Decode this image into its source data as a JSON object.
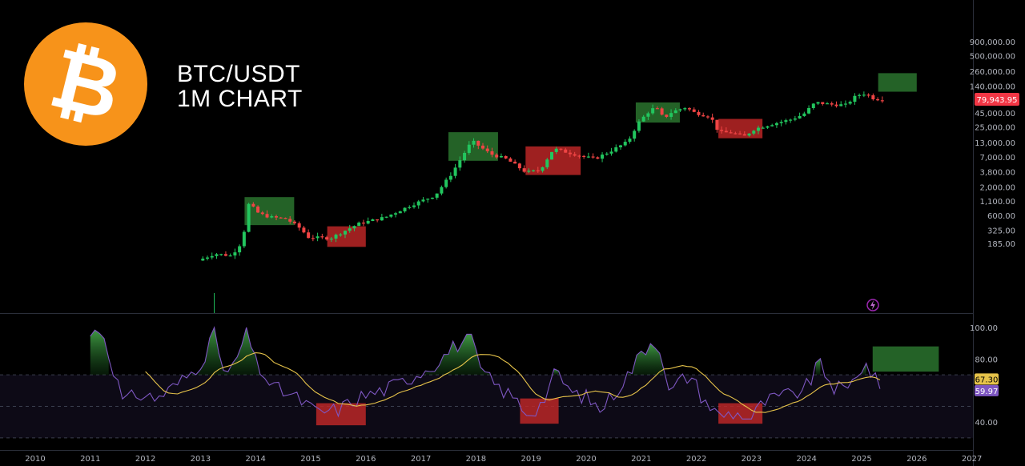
{
  "header": {
    "symbol": "BTC/USDT",
    "timeframe": "1M CHART"
  },
  "icons": {
    "logo": "bitcoin-icon",
    "alert": "lightning-icon"
  },
  "colors": {
    "up": "#22c55e",
    "down": "#ef4444",
    "rsi": "#7e57c2",
    "rsi_ma": "#e6c34a",
    "zone_green": "#2e7d32",
    "zone_red": "#c62828",
    "logo": "#f7931a"
  },
  "chart_data": [
    {
      "type": "candlestick",
      "title": "",
      "yscale": "log",
      "yticks": [
        "900,000.00",
        "500,000.00",
        "260,000.00",
        "140,000.00",
        "79,943.95",
        "45,000.00",
        "25,000.00",
        "13,000.00",
        "7,000.00",
        "3,800.00",
        "2,000.00",
        "1,100.00",
        "600.00",
        "325.00",
        "185.00"
      ],
      "last_price": "79,943.95",
      "xticks": [
        "2010",
        "2011",
        "2012",
        "2013",
        "2014",
        "2015",
        "2016",
        "2017",
        "2018",
        "2019",
        "2020",
        "2021",
        "2022",
        "2023",
        "2024",
        "2025",
        "2026",
        "2027"
      ],
      "approx_yearly_close": {
        "x": [
          2013.8,
          2014.9,
          2015.9,
          2016.9,
          2017.9,
          2018.9,
          2019.9,
          2020.9,
          2021.9,
          2022.9,
          2023.9,
          2024.9
        ],
        "y": [
          750,
          320,
          430,
          960,
          13800,
          3700,
          7200,
          29000,
          46000,
          16500,
          42000,
          94000
        ]
      },
      "zones": [
        {
          "kind": "green",
          "x": [
            2013.8,
            2014.7
          ],
          "y": [
            400,
            1300
          ]
        },
        {
          "kind": "red",
          "x": [
            2015.3,
            2016.0
          ],
          "y": [
            160,
            380
          ]
        },
        {
          "kind": "green",
          "x": [
            2017.5,
            2018.4
          ],
          "y": [
            6000,
            20000
          ]
        },
        {
          "kind": "red",
          "x": [
            2018.9,
            2019.9
          ],
          "y": [
            3300,
            11000
          ]
        },
        {
          "kind": "green",
          "x": [
            2020.9,
            2021.7
          ],
          "y": [
            30000,
            70000
          ]
        },
        {
          "kind": "red",
          "x": [
            2022.4,
            2023.2
          ],
          "y": [
            15500,
            35000
          ]
        },
        {
          "kind": "green",
          "x": [
            2025.3,
            2026.0
          ],
          "y": [
            110000,
            240000
          ]
        }
      ]
    },
    {
      "type": "line",
      "title": "",
      "yticks": [
        "100.00",
        "80.00",
        "40.00"
      ],
      "ylim": [
        30,
        105
      ],
      "band": [
        70,
        50
      ],
      "rsi_value": "59.97",
      "ma_value": "67.30",
      "zones": [
        {
          "kind": "red",
          "x": [
            2015.1,
            2016.0
          ],
          "y": [
            38,
            52
          ]
        },
        {
          "kind": "red",
          "x": [
            2018.8,
            2019.5
          ],
          "y": [
            39,
            55
          ]
        },
        {
          "kind": "red",
          "x": [
            2022.4,
            2023.2
          ],
          "y": [
            39,
            52
          ]
        },
        {
          "kind": "green",
          "x": [
            2025.2,
            2026.4
          ],
          "y": [
            72,
            88
          ]
        }
      ]
    }
  ]
}
